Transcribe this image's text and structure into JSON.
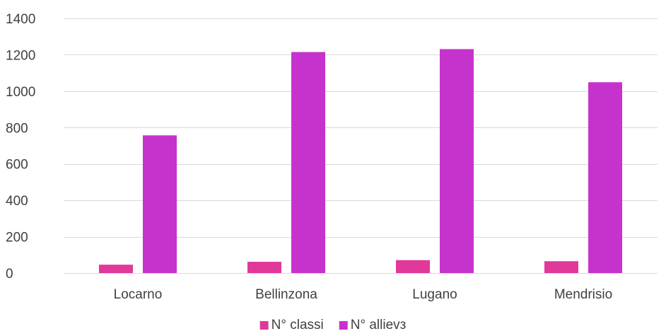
{
  "chart_data": {
    "type": "bar",
    "categories": [
      "Locarno",
      "Bellinzona",
      "Lugano",
      "Mendrisio"
    ],
    "series": [
      {
        "name": "N° classi",
        "values": [
          46,
          62,
          71,
          65
        ],
        "color": "#e0399a"
      },
      {
        "name": "N° allievз",
        "values": [
          757,
          1215,
          1231,
          1049
        ],
        "color": "#c633cc"
      }
    ],
    "ylim": [
      0,
      1400
    ],
    "yticks": [
      0,
      200,
      400,
      600,
      800,
      1000,
      1200,
      1400
    ],
    "grid": true,
    "legend_position": "bottom"
  }
}
